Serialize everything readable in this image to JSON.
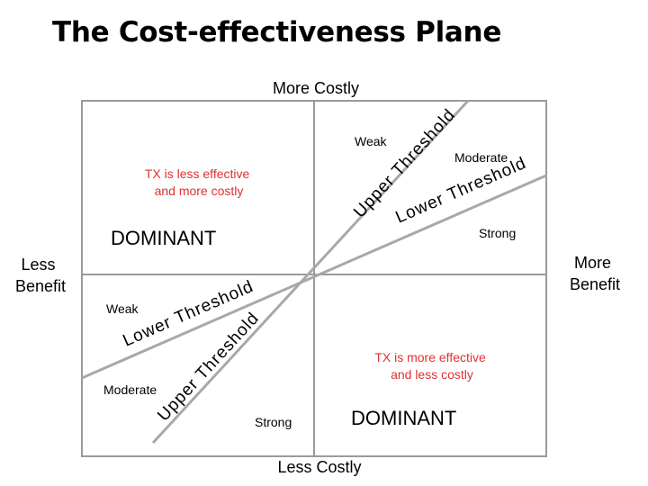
{
  "title": "The Cost-effectiveness Plane",
  "axes": {
    "top": "More Costly",
    "bottom": "Less Costly",
    "left": [
      "Less",
      "Benefit"
    ],
    "right": [
      "More",
      "Benefit"
    ]
  },
  "quadrants": {
    "upper_left": {
      "description": [
        "TX is less effective",
        "and more costly"
      ],
      "dominance": "DOMINANT"
    },
    "lower_right": {
      "description": [
        "TX is more effective",
        "and less costly"
      ],
      "dominance": "DOMINANT"
    }
  },
  "upper_right": {
    "upper_threshold": "Upper Threshold",
    "lower_threshold": "Lower Threshold",
    "weak": "Weak",
    "moderate": "Moderate",
    "strong": "Strong"
  },
  "lower_left": {
    "upper_threshold": "Upper Threshold",
    "lower_threshold": "Lower Threshold",
    "weak": "Weak",
    "moderate": "Moderate",
    "strong": "Strong"
  },
  "colors": {
    "description": "#e03030",
    "frame": "#9a9a9a",
    "threshold_line": "#a8a8a8"
  }
}
